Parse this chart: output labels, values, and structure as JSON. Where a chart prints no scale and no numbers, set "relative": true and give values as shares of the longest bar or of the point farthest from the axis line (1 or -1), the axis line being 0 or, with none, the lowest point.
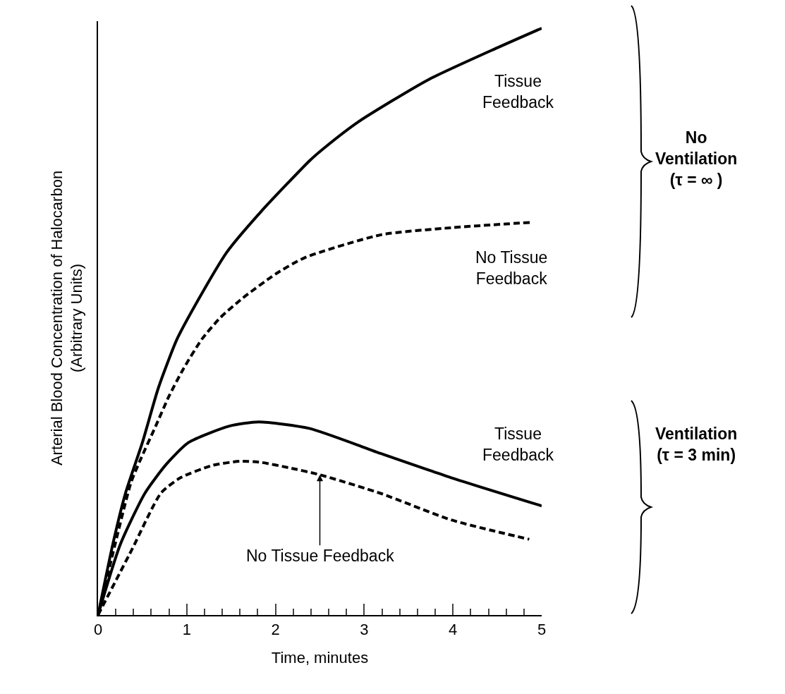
{
  "chart_data": {
    "type": "line",
    "relative": true,
    "xlabel": "Time, minutes",
    "ylabel": "Arterial Blood Concentration of Halocarbon\n(Arbitrary Units)",
    "xlim": [
      0,
      5
    ],
    "xticks": [
      0,
      {
        "value": 0.2,
        "label": null
      },
      {
        "value": 0.4,
        "label": null
      },
      {
        "value": 0.6,
        "label": null
      },
      {
        "value": 0.8,
        "label": null
      },
      1,
      {
        "value": 1.2,
        "label": null
      },
      {
        "value": 1.4,
        "label": null
      },
      {
        "value": 1.6,
        "label": null
      },
      {
        "value": 1.8,
        "label": null
      },
      2,
      {
        "value": 2.2,
        "label": null
      },
      {
        "value": 2.4,
        "label": null
      },
      {
        "value": 2.6,
        "label": null
      },
      {
        "value": 2.8,
        "label": null
      },
      3,
      {
        "value": 3.2,
        "label": null
      },
      {
        "value": 3.4,
        "label": null
      },
      {
        "value": 3.6,
        "label": null
      },
      {
        "value": 3.8,
        "label": null
      },
      4,
      {
        "value": 4.2,
        "label": null
      },
      {
        "value": 4.4,
        "label": null
      },
      {
        "value": 4.6,
        "label": null
      },
      {
        "value": 4.8,
        "label": null
      },
      5
    ],
    "legend": false,
    "marker": "none",
    "series": [
      {
        "name": "Tissue\nFeedback",
        "color": "#000000",
        "line_style": "solid",
        "x": [
          0,
          0.17,
          0.31,
          0.5,
          0.68,
          0.89,
          1.14,
          1.45,
          1.84,
          2.39,
          2.55,
          2.93,
          3.72,
          4.52,
          5
        ],
        "values": [
          0,
          0.123,
          0.208,
          0.294,
          0.387,
          0.47,
          0.54,
          0.618,
          0.688,
          0.775,
          0.796,
          0.84,
          0.912,
          0.968,
          1.0
        ]
      },
      {
        "name": "No Tissue\nFeedback",
        "color": "#000000",
        "line_style": "dashed",
        "x": [
          0,
          0.37,
          0.47,
          0.65,
          0.8,
          0.96,
          1.17,
          1.38,
          1.63,
          2.0,
          2.33,
          3.19,
          3.98,
          4.87
        ],
        "values": [
          0,
          0.225,
          0.262,
          0.322,
          0.373,
          0.419,
          0.47,
          0.507,
          0.54,
          0.581,
          0.609,
          0.648,
          0.66,
          0.669
        ]
      },
      {
        "name": "Tissue\nFeedback",
        "color": "#000000",
        "line_style": "solid",
        "x": [
          0,
          0.25,
          0.53,
          0.77,
          1.02,
          1.48,
          1.81,
          2.38,
          3.19,
          3.98,
          5
        ],
        "values": [
          0,
          0.12,
          0.208,
          0.257,
          0.294,
          0.322,
          0.329,
          0.318,
          0.275,
          0.234,
          0.186
        ]
      },
      {
        "name": "No Tissue Feedback",
        "color": "#000000",
        "line_style": "dashed",
        "x": [
          0,
          0.38,
          0.71,
          0.93,
          1.29,
          1.6,
          1.84,
          2.15,
          2.5,
          3.19,
          3.98,
          4.86
        ],
        "values": [
          0,
          0.111,
          0.208,
          0.234,
          0.255,
          0.262,
          0.26,
          0.251,
          0.239,
          0.207,
          0.162,
          0.129
        ]
      }
    ],
    "annotations": [
      "No\nVentilation\n(τ = ∞ )",
      "Ventilation\n(τ = 3 min)"
    ]
  }
}
